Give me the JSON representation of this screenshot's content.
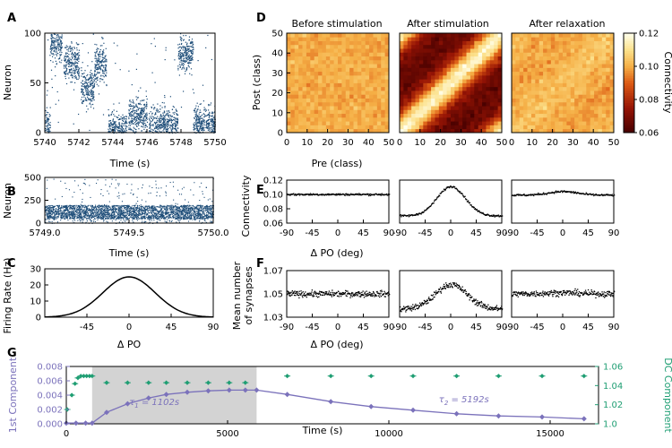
{
  "colors": {
    "raster": "#1f4e79",
    "purple": "#7b72bb",
    "green": "#1f9e73",
    "shade": "#d3d3d3"
  },
  "chart_data": [
    {
      "id": "A",
      "panel_label": "A",
      "type": "scatter",
      "title": "",
      "xlabel": "Time (s)",
      "ylabel": "Neuron",
      "xlim": [
        5740,
        5750
      ],
      "ylim": [
        0,
        100
      ],
      "xticks": [
        5740,
        5742,
        5744,
        5746,
        5748,
        5750
      ],
      "yticks": [
        0,
        50,
        100
      ],
      "bumps": [
        {
          "t0": 5740.0,
          "t1": 5740.3,
          "center": 5
        },
        {
          "t0": 5740.3,
          "t1": 5741.0,
          "center": 90
        },
        {
          "t0": 5741.1,
          "t1": 5742.0,
          "center": 70
        },
        {
          "t0": 5742.1,
          "t1": 5742.9,
          "center": 45
        },
        {
          "t0": 5742.9,
          "t1": 5743.6,
          "center": 70
        },
        {
          "t0": 5743.7,
          "t1": 5744.8,
          "center": 3
        },
        {
          "t0": 5744.9,
          "t1": 5746.0,
          "center": 18
        },
        {
          "t0": 5746.1,
          "t1": 5747.0,
          "center": 8
        },
        {
          "t0": 5747.0,
          "t1": 5747.8,
          "center": 8
        },
        {
          "t0": 5747.8,
          "t1": 5748.7,
          "center": 80
        },
        {
          "t0": 5748.7,
          "t1": 5750.0,
          "center": 10
        }
      ]
    },
    {
      "id": "B",
      "panel_label": "B",
      "type": "scatter",
      "title": "",
      "xlabel": "Time (s)",
      "ylabel": "Neuron",
      "xlim": [
        5749.0,
        5750.0
      ],
      "ylim": [
        0,
        500
      ],
      "xticks": [
        "5749.0",
        "5749.5",
        "5750.0"
      ],
      "yticks": [
        0,
        250,
        500
      ],
      "dense_band": [
        50,
        200
      ]
    },
    {
      "id": "C",
      "panel_label": "C",
      "type": "line",
      "title": "",
      "xlabel": "Δ PO",
      "ylabel": "Firing Rate (Hz)",
      "xlim": [
        -90,
        90
      ],
      "ylim": [
        0,
        30
      ],
      "xticks": [
        -45,
        0,
        45,
        90
      ],
      "yticks": [
        0,
        10,
        20,
        30
      ],
      "peak": 25,
      "sigma": 28
    },
    {
      "id": "D",
      "panel_label": "D",
      "type": "heatmap",
      "xlabel": "Pre (class)",
      "ylabel": "Post (class)",
      "xlim": [
        0,
        50
      ],
      "ylim": [
        0,
        50
      ],
      "xticks": [
        0,
        10,
        20,
        30,
        40,
        50
      ],
      "yticks": [
        0,
        10,
        20,
        30,
        40,
        50
      ],
      "titles": [
        "Before stimulation",
        "After stimulation",
        "After relaxation"
      ],
      "colorbar": {
        "label": "Connectivity",
        "range": [
          0.06,
          0.12
        ],
        "ticks": [
          "0.06",
          "0.08",
          "0.10",
          "0.12"
        ]
      },
      "peaks": [
        0.0,
        0.05,
        0.006
      ]
    },
    {
      "id": "E",
      "panel_label": "E",
      "type": "scatter",
      "xlabel": "Δ PO (deg)",
      "ylabel": "Connectivity",
      "xlim": [
        -90,
        90
      ],
      "ylim": [
        0.06,
        0.12
      ],
      "xticks": [
        -90,
        -45,
        0,
        45,
        90
      ],
      "yticks": [
        "0.06",
        "0.08",
        "0.10",
        "0.12"
      ],
      "baseline": [
        0.1,
        0.07,
        0.099
      ],
      "peak_value": [
        0.1,
        0.111,
        0.104
      ]
    },
    {
      "id": "F",
      "panel_label": "F",
      "type": "scatter",
      "xlabel": "Δ PO (deg)",
      "ylabel": "Mean number of synapses",
      "xlim": [
        -90,
        90
      ],
      "ylim": [
        1.03,
        1.07
      ],
      "xticks": [
        -90,
        -45,
        0,
        45,
        90
      ],
      "yticks": [
        "1.03",
        "1.05",
        "1.07"
      ],
      "baseline": [
        1.05,
        1.037,
        1.05
      ],
      "peak_value": [
        1.05,
        1.058,
        1.051
      ]
    },
    {
      "id": "G",
      "panel_label": "G",
      "type": "line",
      "xlabel": "Time (s)",
      "ylabel_left": "1st Component",
      "ylabel_right": "DC Component",
      "xlim": [
        0,
        16500
      ],
      "ylim_left": [
        0,
        0.008
      ],
      "ylim_right": [
        1.0,
        1.06
      ],
      "xticks": [
        0,
        5000,
        10000,
        15000
      ],
      "yticks_left": [
        "0.000",
        "0.002",
        "0.004",
        "0.006",
        "0.008"
      ],
      "yticks_right": [
        "1.0",
        "1.02",
        "1.04",
        "1.06"
      ],
      "shaded_interval": [
        800,
        5900
      ],
      "series": [
        {
          "name": "1st Component",
          "axis": "left",
          "x": [
            0,
            300,
            600,
            800,
            1250,
            1900,
            2550,
            3100,
            3750,
            4400,
            5050,
            5550,
            5900,
            6850,
            8200,
            9450,
            10750,
            12100,
            13400,
            14750,
            16050
          ],
          "y": [
            0.0001,
            0.0001,
            0.0001,
            0.0001,
            0.0016,
            0.0028,
            0.0036,
            0.0041,
            0.0044,
            0.0046,
            0.0047,
            0.0047,
            0.0047,
            0.0041,
            0.0031,
            0.0024,
            0.0019,
            0.0014,
            0.0011,
            0.00095,
            0.0007
          ]
        },
        {
          "name": "DC Component",
          "axis": "right",
          "x": [
            30,
            170,
            270,
            360,
            450,
            540,
            630,
            720,
            800,
            1250,
            1900,
            2550,
            3100,
            3750,
            4400,
            5050,
            5550,
            6850,
            8200,
            9450,
            10750,
            12100,
            13400,
            14750,
            16050
          ],
          "y": [
            1.015,
            1.03,
            1.042,
            1.048,
            1.05,
            1.05,
            1.05,
            1.05,
            1.05,
            1.043,
            1.043,
            1.043,
            1.043,
            1.043,
            1.043,
            1.043,
            1.043,
            1.05,
            1.05,
            1.05,
            1.05,
            1.05,
            1.05,
            1.05,
            1.05
          ]
        }
      ],
      "annotations": [
        {
          "sub": "1",
          "value": "1102s",
          "x": 1950,
          "y": 0.0026
        },
        {
          "sub": "2",
          "value": "5192s",
          "x": 11550,
          "y": 0.003
        }
      ]
    }
  ]
}
